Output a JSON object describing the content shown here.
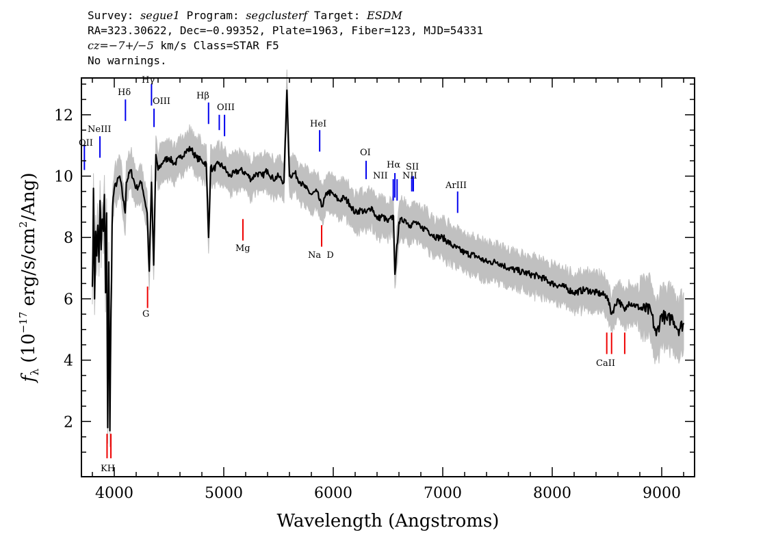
{
  "header": {
    "survey_label": "Survey:",
    "survey": "segue1",
    "program_label": "Program:",
    "program": "segclusterf",
    "target_label": "Target:",
    "target": "ESDM",
    "line2": "RA=323.30622, Dec=−0.99352, Plate=1963, Fiber=123, MJD=54331",
    "cz_label": "cz=",
    "cz_value": "−7+/−5",
    "cz_rest": " km/s Class=STAR F5",
    "warnings": "No warnings."
  },
  "colors": {
    "flux": "#000000",
    "error_band": "#c0c0c0",
    "emission": "#0000ee",
    "absorption": "#ee0000"
  },
  "chart_data": {
    "type": "line",
    "xlabel": "Wavelength (Angstroms)",
    "ylabel_prefix": "f",
    "ylabel_sub": "λ",
    "ylabel_mid": " (10",
    "ylabel_exp1": "−17",
    "ylabel_mid2": " erg/s/cm",
    "ylabel_exp2": "2",
    "ylabel_end": "/Ang)",
    "xlim": [
      3700,
      9300
    ],
    "ylim": [
      0.2,
      13.2
    ],
    "xticks": [
      4000,
      5000,
      6000,
      7000,
      8000,
      9000
    ],
    "yticks": [
      2,
      4,
      6,
      8,
      10,
      12
    ],
    "grid": false,
    "series": [
      {
        "x": [
          3800,
          3810,
          3820,
          3830,
          3840,
          3850,
          3860,
          3870,
          3880,
          3890,
          3900,
          3910,
          3920,
          3930,
          3940,
          3950,
          3960,
          3970,
          3980,
          3990,
          4000,
          4050,
          4100,
          4110,
          4150,
          4200,
          4250,
          4300,
          4320,
          4340,
          4360,
          4380,
          4400,
          4450,
          4500,
          4550,
          4600,
          4650,
          4700,
          4750,
          4800,
          4840,
          4861,
          4880,
          4900,
          4950,
          5000,
          5050,
          5100,
          5150,
          5200,
          5250,
          5300,
          5350,
          5400,
          5450,
          5500,
          5550,
          5577,
          5600,
          5650,
          5700,
          5750,
          5800,
          5850,
          5893,
          5950,
          6000,
          6050,
          6100,
          6150,
          6200,
          6250,
          6300,
          6350,
          6400,
          6450,
          6500,
          6550,
          6563,
          6600,
          6650,
          6700,
          6750,
          6800,
          6850,
          6900,
          6950,
          7000,
          7100,
          7200,
          7300,
          7400,
          7500,
          7600,
          7700,
          7800,
          7900,
          8000,
          8100,
          8200,
          8300,
          8400,
          8500,
          8542,
          8600,
          8662,
          8700,
          8800,
          8900,
          8950,
          9000,
          9050,
          9100,
          9150,
          9200
        ],
        "y": [
          6.4,
          9.6,
          6.0,
          8.2,
          7.4,
          8.4,
          7.2,
          9.2,
          7.6,
          8.6,
          8.2,
          9.4,
          6.2,
          8.8,
          1.8,
          7.2,
          1.7,
          5.6,
          8.4,
          9.3,
          9.6,
          10.0,
          8.8,
          9.8,
          10.2,
          9.6,
          9.8,
          8.8,
          6.9,
          9.8,
          7.1,
          10.7,
          10.2,
          10.5,
          10.6,
          10.4,
          10.6,
          10.8,
          10.9,
          10.6,
          10.5,
          10.4,
          8.0,
          10.3,
          10.2,
          10.4,
          10.3,
          10.0,
          10.1,
          10.2,
          10.1,
          9.9,
          10.1,
          10.0,
          10.2,
          9.9,
          10.0,
          9.8,
          12.8,
          10.0,
          10.1,
          9.8,
          9.6,
          9.4,
          9.5,
          9.0,
          9.5,
          9.4,
          9.2,
          9.3,
          9.1,
          8.8,
          8.9,
          8.8,
          9.0,
          8.6,
          8.7,
          8.5,
          8.7,
          6.8,
          8.5,
          8.6,
          8.4,
          8.5,
          8.3,
          8.3,
          8.1,
          8.0,
          8.0,
          7.7,
          7.5,
          7.4,
          7.2,
          7.2,
          7.0,
          6.9,
          6.8,
          6.7,
          6.5,
          6.4,
          6.2,
          6.3,
          6.2,
          6.1,
          5.5,
          6.0,
          5.6,
          5.9,
          5.7,
          5.6,
          4.8,
          5.5,
          5.3,
          5.4,
          5.0,
          5.2
        ],
        "error": 0.6
      }
    ],
    "emission_lines": [
      {
        "label": "OII",
        "wavelength": 3727,
        "y_top": 11.0,
        "y_bottom": 10.2
      },
      {
        "label": "NeIII",
        "wavelength": 3869,
        "y_top": 11.3,
        "y_bottom": 10.6
      },
      {
        "label": "Hδ",
        "wavelength": 4102,
        "y_top": 12.5,
        "y_bottom": 11.8
      },
      {
        "label": "Hγ",
        "wavelength": 4340,
        "y_top": 13.0,
        "y_bottom": 12.3
      },
      {
        "label": "OIII",
        "wavelength": 4363,
        "y_top": 12.2,
        "y_bottom": 11.6
      },
      {
        "label": "Hβ",
        "wavelength": 4861,
        "y_top": 12.4,
        "y_bottom": 11.7
      },
      {
        "label": "OIII",
        "wavelength": 4959,
        "y_top": 12.0,
        "y_bottom": 11.5
      },
      {
        "label": "OIII",
        "wavelength": 5007,
        "y_top": 12.0,
        "y_bottom": 11.3
      },
      {
        "label": "HeI",
        "wavelength": 5876,
        "y_top": 11.5,
        "y_bottom": 10.8
      },
      {
        "label": "OI",
        "wavelength": 6300,
        "y_top": 10.5,
        "y_bottom": 9.9
      },
      {
        "label": "NII",
        "wavelength": 6548,
        "y_top": 9.9,
        "y_bottom": 9.2
      },
      {
        "label": "Hα",
        "wavelength": 6563,
        "y_top": 10.1,
        "y_bottom": 9.3
      },
      {
        "label": "NII",
        "wavelength": 6583,
        "y_top": 9.9,
        "y_bottom": 9.2
      },
      {
        "label": "SII",
        "wavelength": 6717,
        "y_top": 10.0,
        "y_bottom": 9.5
      },
      {
        "label": "SII",
        "wavelength": 6731,
        "y_top": 10.0,
        "y_bottom": 9.5
      },
      {
        "label": "ArIII",
        "wavelength": 7136,
        "y_top": 9.5,
        "y_bottom": 8.8
      }
    ],
    "absorption_lines": [
      {
        "label": "K",
        "wavelength": 3934,
        "y_top": 1.6,
        "y_bottom": 0.8
      },
      {
        "label": "H",
        "wavelength": 3969,
        "y_top": 1.6,
        "y_bottom": 0.8
      },
      {
        "label": "G",
        "wavelength": 4304,
        "y_top": 6.4,
        "y_bottom": 5.7
      },
      {
        "label": "Mg",
        "wavelength": 5175,
        "y_top": 8.6,
        "y_bottom": 7.9
      },
      {
        "label": "Na D",
        "wavelength": 5894,
        "y_top": 8.4,
        "y_bottom": 7.7
      },
      {
        "label": "CaII",
        "wavelength": 8498,
        "y_top": 4.9,
        "y_bottom": 4.2
      },
      {
        "label": "CaII",
        "wavelength": 8542,
        "y_top": 4.9,
        "y_bottom": 4.2
      },
      {
        "label": "CaII",
        "wavelength": 8662,
        "y_top": 4.9,
        "y_bottom": 4.2
      }
    ],
    "visible_labels": {
      "OII": "OII",
      "NeIII": "NeIII",
      "Hdelta": "Hδ",
      "Hgamma": "Hγ",
      "OIII_a": "OIII",
      "Hbeta": "Hβ",
      "OIII_b": "OIII",
      "HeI": "HeI",
      "OI": "OI",
      "NII_a": "NII",
      "Halpha": "Hα",
      "SII": "SII",
      "NII_b": "NII",
      "ArIII": "ArIII",
      "KH": "KH",
      "G": "G",
      "Mg": "Mg",
      "NaD": "Na  D",
      "CaII": "CaII"
    }
  }
}
